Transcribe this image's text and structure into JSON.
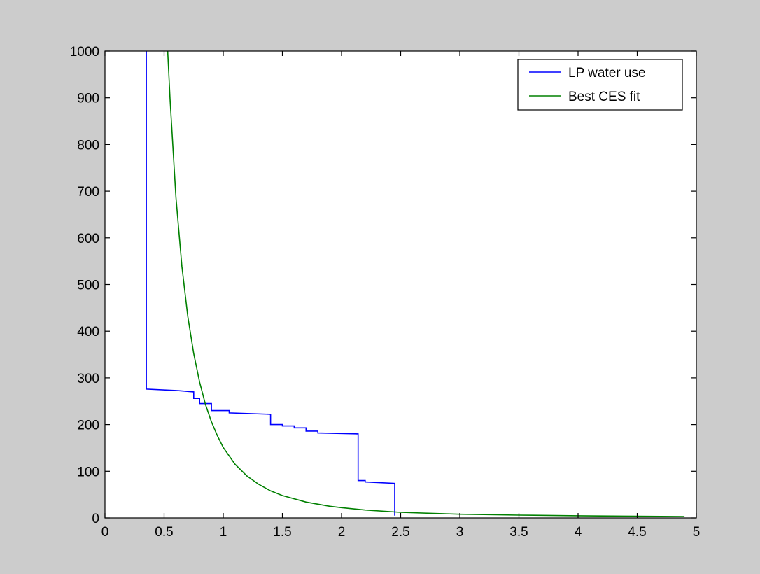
{
  "chart_data": {
    "type": "line",
    "title": "",
    "xlabel": "",
    "ylabel": "",
    "xlim": [
      0,
      5
    ],
    "ylim": [
      0,
      1000
    ],
    "xticks": [
      0,
      0.5,
      1,
      1.5,
      2,
      2.5,
      3,
      3.5,
      4,
      4.5,
      5
    ],
    "xtick_labels": [
      "0",
      "0.5",
      "1",
      "1.5",
      "2",
      "2.5",
      "3",
      "3.5",
      "4",
      "4.5",
      "5"
    ],
    "yticks": [
      0,
      100,
      200,
      300,
      400,
      500,
      600,
      700,
      800,
      900,
      1000
    ],
    "ytick_labels": [
      "0",
      "100",
      "200",
      "300",
      "400",
      "500",
      "600",
      "700",
      "800",
      "900",
      "1000"
    ],
    "grid": false,
    "legend_position": "top-right",
    "series": [
      {
        "name": "LP water use",
        "color": "#0000ff",
        "x": [
          0.35,
          0.35,
          0.6,
          0.75,
          0.75,
          0.8,
          0.8,
          0.9,
          0.9,
          1.05,
          1.05,
          1.4,
          1.4,
          1.5,
          1.5,
          1.6,
          1.6,
          1.7,
          1.7,
          1.8,
          1.8,
          2.14,
          2.14,
          2.2,
          2.2,
          2.45,
          2.45
        ],
        "y": [
          1000,
          276,
          273,
          270,
          256,
          256,
          245,
          245,
          230,
          230,
          225,
          222,
          200,
          200,
          197,
          197,
          193,
          193,
          186,
          186,
          182,
          180,
          80,
          80,
          77,
          74,
          5
        ]
      },
      {
        "name": "Best CES fit",
        "color": "#008000",
        "x": [
          0.53,
          0.55,
          0.6,
          0.65,
          0.7,
          0.75,
          0.8,
          0.85,
          0.9,
          0.95,
          1.0,
          1.1,
          1.2,
          1.3,
          1.4,
          1.5,
          1.7,
          1.9,
          2.0,
          2.2,
          2.5,
          3.0,
          3.5,
          4.0,
          4.5,
          4.9
        ],
        "y": [
          1000,
          897,
          687,
          539,
          432,
          352,
          291,
          243,
          206,
          176,
          151,
          115,
          90,
          72,
          58,
          48,
          34,
          25,
          22,
          17,
          12,
          8,
          6,
          4.6,
          3.6,
          3.0
        ]
      }
    ]
  }
}
